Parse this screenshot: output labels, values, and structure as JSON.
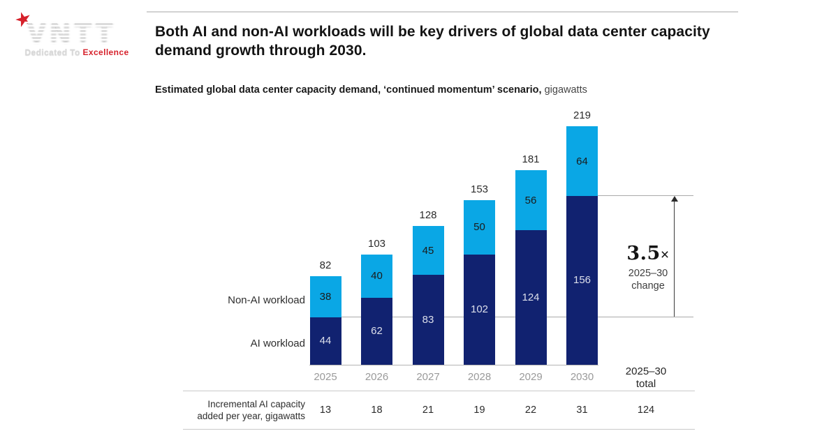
{
  "logo": {
    "text": "VNTT",
    "star": "★",
    "tagline_gray": "Dedicated To ",
    "tagline_red": "Excellence"
  },
  "header": {
    "title": "Both AI and non-AI workloads will be key drivers of global data center capacity demand growth through 2030."
  },
  "chart_data": {
    "type": "bar",
    "stacked": true,
    "subtitle_bold": "Estimated global data center capacity demand, ‘continued momentum’ scenario,",
    "subtitle_unit": " gigawatts",
    "categories": [
      "2025",
      "2026",
      "2027",
      "2028",
      "2029",
      "2030"
    ],
    "series": [
      {
        "name": "AI workload",
        "color": "#112270",
        "values": [
          44,
          62,
          83,
          102,
          124,
          156
        ]
      },
      {
        "name": "Non-AI workload",
        "color": "#0aa7e5",
        "values": [
          38,
          40,
          45,
          50,
          56,
          64
        ]
      }
    ],
    "totals": [
      82,
      103,
      128,
      153,
      181,
      219
    ],
    "ylim": [
      0,
      219
    ],
    "grid": false,
    "legend_position": "left-of-first-bar",
    "annotation": {
      "multiplier": "3.5",
      "times": "×",
      "line1": "2025–30",
      "line2": "change"
    },
    "total_column": {
      "header_line1": "2025–30",
      "header_line2": "total"
    },
    "table_row": {
      "label_line1": "Incremental AI capacity",
      "label_line2": "added per year, gigawatts",
      "values": [
        13,
        18,
        21,
        19,
        22,
        31
      ],
      "total": 124
    },
    "colors": {
      "ai": "#112270",
      "non_ai": "#0aa7e5",
      "accent_red": "#d6212b"
    }
  }
}
